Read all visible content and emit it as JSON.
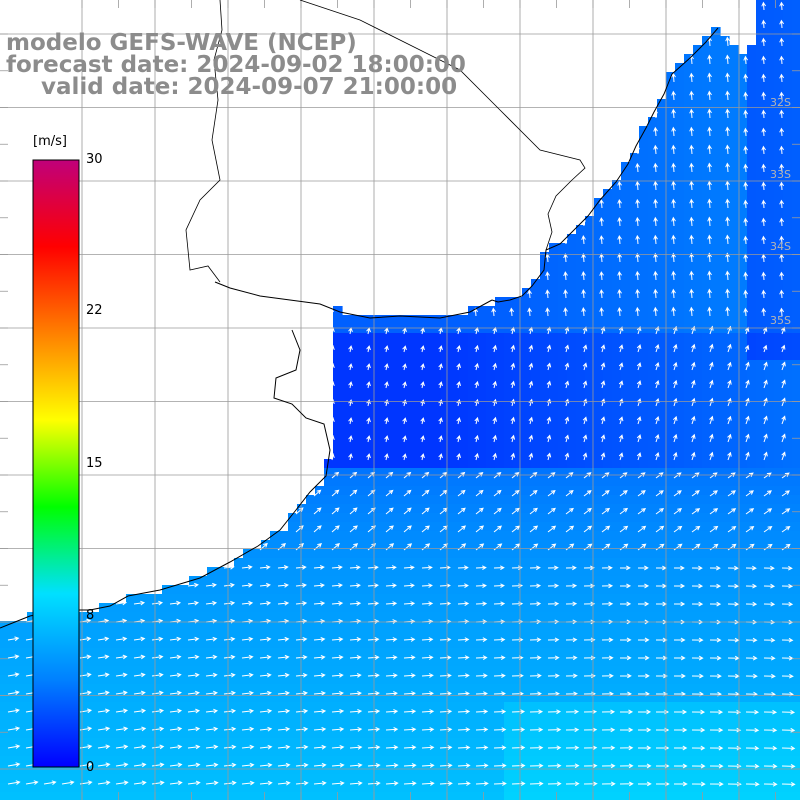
{
  "title": {
    "model": "modelo GEFS-WAVE (NCEP)",
    "forecast": "forecast date: 2024-09-02 18:00:00",
    "valid": "valid date: 2024-09-07 21:00:00"
  },
  "colorbar": {
    "unit": "[m/s]",
    "ticks": [
      "30",
      "22",
      "15",
      "8",
      "0"
    ],
    "range": [
      0,
      30
    ],
    "stops": [
      "#0000ff",
      "#0080ff",
      "#00e0ff",
      "#00ff00",
      "#ffff00",
      "#ff8000",
      "#ff0000",
      "#c0007a"
    ]
  },
  "map": {
    "lat_labels": [
      "32S",
      "33S",
      "34S",
      "35S"
    ],
    "land_color": "#ffffff",
    "grid_color": "#9a9a9a",
    "arrow_color": "#ffffff"
  }
}
